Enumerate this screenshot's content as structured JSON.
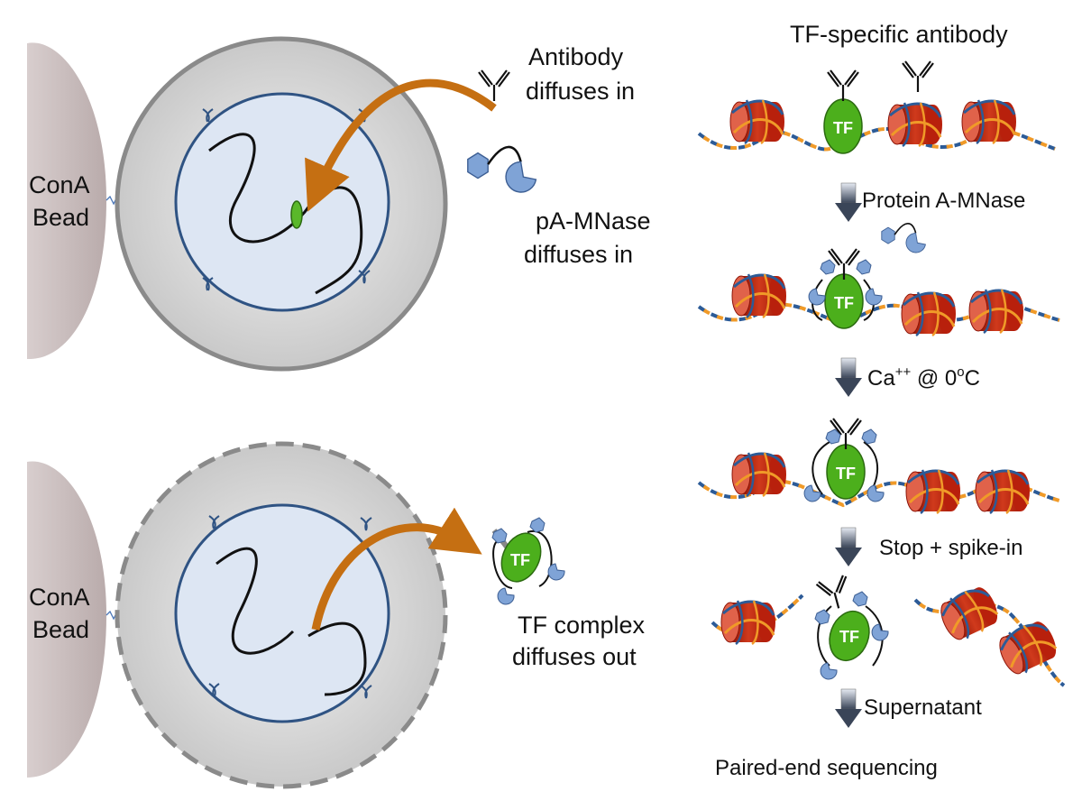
{
  "left_top": {
    "bead_label_1": "ConA",
    "bead_label_2": "Bead",
    "antibody_text_1": "Antibody",
    "antibody_text_2": "diffuses in",
    "pamnase_text_1": "pA-MNase",
    "pamnase_text_2": "diffuses in"
  },
  "left_bottom": {
    "bead_label_1": "ConA",
    "bead_label_2": "Bead",
    "complex_text_1": "TF complex",
    "complex_text_2": "diffuses out",
    "tf_label": "TF"
  },
  "right": {
    "header": "TF-specific antibody",
    "tf_label": "TF",
    "steps": [
      "Protein A-MNase",
      "Ca",
      "Stop + spike-in",
      "Supernatant"
    ],
    "calcium_superscript": "++",
    "calcium_rest": " @ 0",
    "degree_superscript": "o",
    "celsius": "C",
    "final": "Paired-end sequencing"
  },
  "colors": {
    "bead": "#c8bcbc",
    "cell_fill": "#e6e6e6",
    "nucleus_fill": "#dde6f3",
    "nucleus_stroke": "#2f5383",
    "arrow": "#c56f12",
    "tf": "#4caf1c",
    "nucleosome": "#c0240f",
    "dna_blue": "#2c5b97",
    "dna_orange": "#f09a28",
    "pa_mnase": "#7fa3d6"
  }
}
